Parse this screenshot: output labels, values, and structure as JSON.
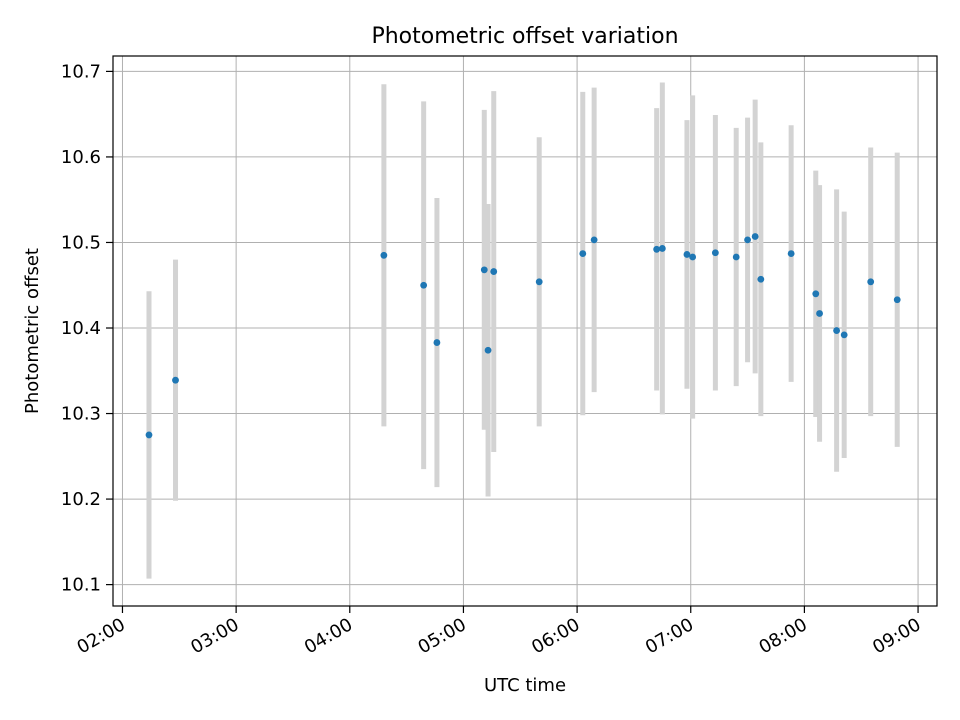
{
  "chart_data": {
    "type": "scatter",
    "title": "Photometric offset variation",
    "xlabel": "UTC time",
    "ylabel": "Photometric offset",
    "x_axis_type": "time (hours UTC)",
    "xlim": [
      "01:55",
      "09:10"
    ],
    "ylim": [
      10.075,
      10.718
    ],
    "xticks": [
      "02:00",
      "03:00",
      "04:00",
      "05:00",
      "06:00",
      "07:00",
      "08:00",
      "09:00"
    ],
    "yticks": [
      "10.1",
      "10.2",
      "10.3",
      "10.4",
      "10.5",
      "10.6",
      "10.7"
    ],
    "grid": true,
    "legend": "none",
    "colors": {
      "point": "#1f77b4",
      "errorbar": "#d3d3d3",
      "grid": "#b0b0b0"
    },
    "series": [
      {
        "points": [
          {
            "x": "02:14",
            "y": 10.275,
            "err": 0.168
          },
          {
            "x": "02:28",
            "y": 10.339,
            "err": 0.141
          },
          {
            "x": "04:18",
            "y": 10.485,
            "err": 0.2
          },
          {
            "x": "04:39",
            "y": 10.45,
            "err": 0.215
          },
          {
            "x": "04:46",
            "y": 10.383,
            "err": 0.169
          },
          {
            "x": "05:11",
            "y": 10.468,
            "err": 0.187
          },
          {
            "x": "05:13",
            "y": 10.374,
            "err": 0.171
          },
          {
            "x": "05:16",
            "y": 10.466,
            "err": 0.211
          },
          {
            "x": "05:40",
            "y": 10.454,
            "err": 0.169
          },
          {
            "x": "06:03",
            "y": 10.487,
            "err": 0.189
          },
          {
            "x": "06:09",
            "y": 10.503,
            "err": 0.178
          },
          {
            "x": "06:42",
            "y": 10.492,
            "err": 0.165
          },
          {
            "x": "06:45",
            "y": 10.493,
            "err": 0.194
          },
          {
            "x": "06:58",
            "y": 10.486,
            "err": 0.157
          },
          {
            "x": "07:01",
            "y": 10.483,
            "err": 0.189
          },
          {
            "x": "07:13",
            "y": 10.488,
            "err": 0.161
          },
          {
            "x": "07:24",
            "y": 10.483,
            "err": 0.151
          },
          {
            "x": "07:30",
            "y": 10.503,
            "err": 0.143
          },
          {
            "x": "07:34",
            "y": 10.507,
            "err": 0.16
          },
          {
            "x": "07:37",
            "y": 10.457,
            "err": 0.16
          },
          {
            "x": "07:53",
            "y": 10.487,
            "err": 0.15
          },
          {
            "x": "08:06",
            "y": 10.44,
            "err": 0.144
          },
          {
            "x": "08:08",
            "y": 10.417,
            "err": 0.15
          },
          {
            "x": "08:17",
            "y": 10.397,
            "err": 0.165
          },
          {
            "x": "08:21",
            "y": 10.392,
            "err": 0.144
          },
          {
            "x": "08:35",
            "y": 10.454,
            "err": 0.157
          },
          {
            "x": "08:49",
            "y": 10.433,
            "err": 0.172
          }
        ]
      }
    ]
  }
}
